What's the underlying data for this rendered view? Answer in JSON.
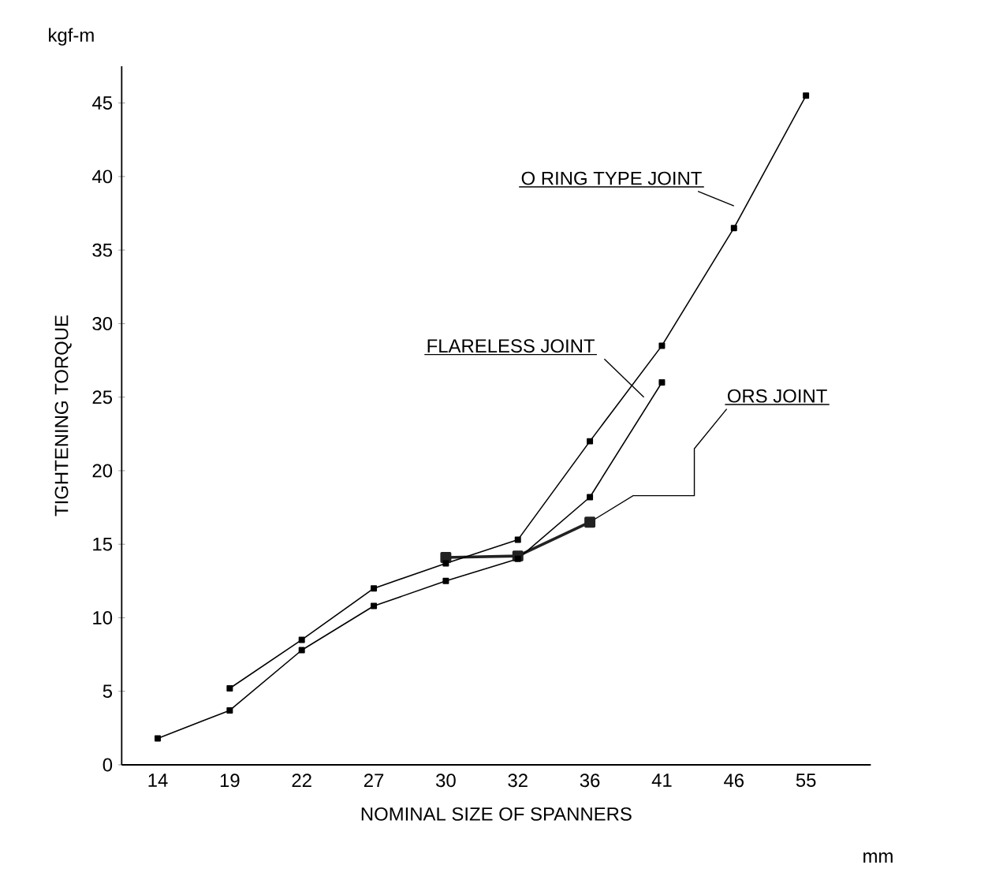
{
  "chart_data": {
    "type": "line",
    "xlabel": "NOMINAL SIZE OF SPANNERS",
    "ylabel": "TIGHTENING TORQUE",
    "annotations": [
      "kgf-m",
      "mm"
    ],
    "categories": [
      "14",
      "19",
      "22",
      "27",
      "30",
      "32",
      "36",
      "41",
      "46",
      "55"
    ],
    "ylim": [
      0,
      47.5
    ],
    "yticks": [
      0,
      5,
      10,
      15,
      20,
      25,
      30,
      35,
      40,
      45
    ],
    "marker": "square",
    "line_style": "solid",
    "grid": false,
    "series": [
      {
        "name": "O RING TYPE JOINT",
        "color": "#000000",
        "values": [
          null,
          5.2,
          8.5,
          12,
          13.7,
          15.3,
          22,
          28.5,
          36.5,
          45.5
        ]
      },
      {
        "name": "FLARELESS JOINT",
        "color": "#000000",
        "values": [
          1.8,
          3.7,
          7.8,
          10.8,
          12.5,
          14.0,
          18.2,
          26,
          null,
          null
        ]
      },
      {
        "name": "ORS JOINT",
        "color": "#222222",
        "values": [
          null,
          null,
          null,
          null,
          14.1,
          14.2,
          16.5,
          null,
          null,
          null
        ]
      }
    ]
  }
}
